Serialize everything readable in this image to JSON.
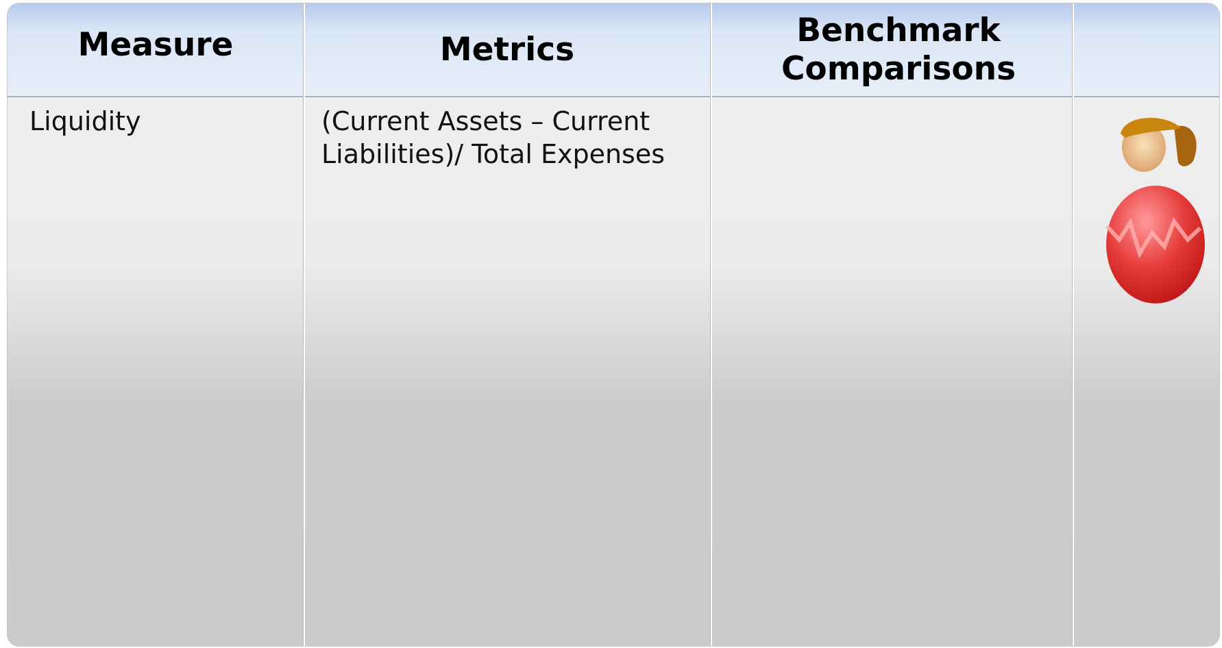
{
  "table": {
    "headers": [
      "Measure",
      "Metrics",
      "Benchmark Comparisons"
    ],
    "rows": [
      [
        "Liquidity",
        "(Current Assets – Current Liabilities)/ Total Expenses"
      ]
    ]
  }
}
